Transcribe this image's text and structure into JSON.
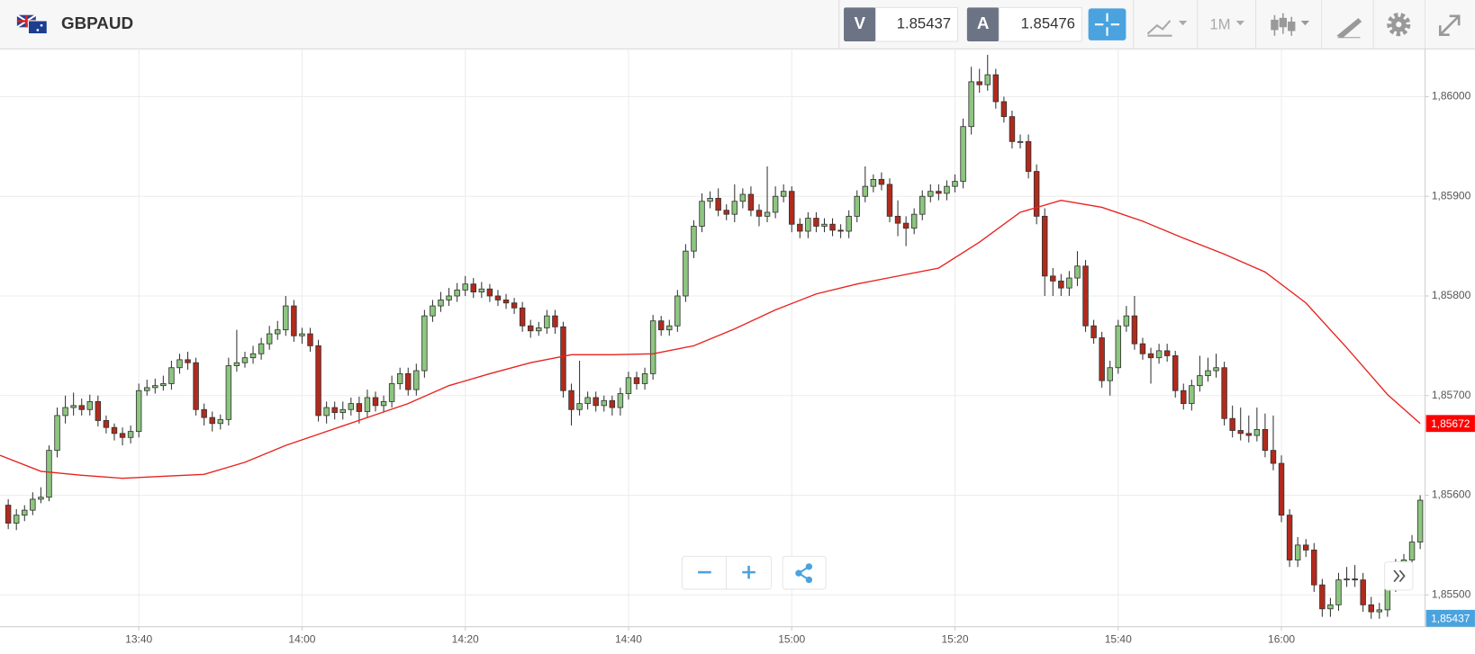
{
  "header": {
    "symbol": "GBPAUD",
    "bid_label": "V",
    "bid": "1.85437",
    "ask_label": "A",
    "ask": "1.85476",
    "timeframe": "1M"
  },
  "chart_data": {
    "type": "candlestick",
    "x": [
      804,
      805,
      806,
      807,
      808,
      809,
      810,
      811,
      812,
      813,
      814,
      815,
      816,
      817,
      818,
      819,
      820,
      821,
      822,
      823,
      824,
      825,
      826,
      827,
      828,
      829,
      830,
      831,
      832,
      833,
      834,
      835,
      836,
      837,
      838,
      839,
      840,
      841,
      842,
      843,
      844,
      845,
      846,
      847,
      848,
      849,
      850,
      851,
      852,
      853,
      854,
      855,
      856,
      857,
      858,
      859,
      860,
      861,
      862,
      863,
      864,
      865,
      866,
      867,
      868,
      869,
      870,
      871,
      872,
      873,
      874,
      875,
      876,
      877,
      878,
      879,
      880,
      881,
      882,
      883,
      884,
      885,
      886,
      887,
      888,
      889,
      890,
      891,
      892,
      893,
      894,
      895,
      896,
      897,
      898,
      899,
      900,
      901,
      902,
      903,
      904,
      905,
      906,
      907,
      908,
      909,
      910,
      911,
      912,
      913,
      914,
      915,
      916,
      917,
      918,
      919,
      920,
      921,
      922,
      923,
      924,
      925,
      926,
      927,
      928,
      929,
      930,
      931,
      932,
      933,
      934,
      935,
      936,
      937,
      938,
      939,
      940,
      941,
      942,
      943,
      944,
      945,
      946,
      947,
      948,
      949,
      950,
      951,
      952,
      953,
      954,
      955,
      956,
      957,
      958,
      959,
      960,
      961,
      962,
      963,
      964,
      965,
      966,
      967,
      968,
      969,
      970,
      971,
      972,
      973,
      974,
      975,
      976,
      977
    ],
    "open": [
      1.8559,
      1.85572,
      1.8558,
      1.85585,
      1.85596,
      1.85598,
      1.85645,
      1.8568,
      1.85688,
      1.8569,
      1.85686,
      1.85694,
      1.85675,
      1.85668,
      1.85662,
      1.85658,
      1.85664,
      1.85705,
      1.85708,
      1.8571,
      1.85712,
      1.85728,
      1.85736,
      1.85733,
      1.85686,
      1.85678,
      1.85672,
      1.85676,
      1.8573,
      1.85733,
      1.85738,
      1.85742,
      1.85752,
      1.85762,
      1.85766,
      1.8579,
      1.8576,
      1.85762,
      1.8575,
      1.8568,
      1.85688,
      1.85683,
      1.85686,
      1.85692,
      1.85684,
      1.85698,
      1.8569,
      1.85694,
      1.85712,
      1.85722,
      1.85706,
      1.85725,
      1.8578,
      1.8579,
      1.85796,
      1.858,
      1.85806,
      1.85812,
      1.85804,
      1.85807,
      1.858,
      1.85796,
      1.85793,
      1.85788,
      1.8577,
      1.85765,
      1.85768,
      1.8578,
      1.85769,
      1.85705,
      1.85686,
      1.85692,
      1.85698,
      1.8569,
      1.85695,
      1.85688,
      1.85702,
      1.85718,
      1.85712,
      1.85722,
      1.85775,
      1.85766,
      1.8577,
      1.858,
      1.85845,
      1.8587,
      1.85895,
      1.85898,
      1.85886,
      1.85882,
      1.85895,
      1.85902,
      1.85886,
      1.8588,
      1.85884,
      1.859,
      1.85905,
      1.85872,
      1.85865,
      1.85878,
      1.8587,
      1.85872,
      1.85866,
      1.85865,
      1.8588,
      1.859,
      1.8591,
      1.85917,
      1.85912,
      1.8588,
      1.85873,
      1.85868,
      1.85882,
      1.859,
      1.85905,
      1.85903,
      1.8591,
      1.85915,
      1.8597,
      1.86015,
      1.86012,
      1.86022,
      1.85995,
      1.8598,
      1.85955,
      1.85955,
      1.85925,
      1.8588,
      1.8582,
      1.85815,
      1.85808,
      1.85818,
      1.8583,
      1.8577,
      1.85758,
      1.85715,
      1.85728,
      1.8577,
      1.8578,
      1.85752,
      1.85742,
      1.85738,
      1.85745,
      1.8574,
      1.85705,
      1.85692,
      1.8571,
      1.8572,
      1.85725,
      1.85728,
      1.85677,
      1.85665,
      1.85662,
      1.8566,
      1.85666,
      1.85645,
      1.85632,
      1.8558,
      1.85535,
      1.8555,
      1.85545,
      1.8551,
      1.85486,
      1.8549,
      1.85515,
      1.85516,
      1.85515,
      1.8549,
      1.85483,
      1.85485,
      1.8551,
      1.8553,
      1.85535,
      1.85553
    ],
    "high": [
      1.85596,
      1.85586,
      1.8559,
      1.85603,
      1.85608,
      1.8565,
      1.85688,
      1.857,
      1.85703,
      1.85697,
      1.85701,
      1.857,
      1.8568,
      1.85672,
      1.85668,
      1.8567,
      1.85712,
      1.85716,
      1.85717,
      1.8572,
      1.85735,
      1.85742,
      1.85744,
      1.85738,
      1.85692,
      1.85684,
      1.85681,
      1.85738,
      1.85766,
      1.85744,
      1.8575,
      1.85758,
      1.8577,
      1.85775,
      1.858,
      1.85796,
      1.85768,
      1.85768,
      1.85756,
      1.85694,
      1.85694,
      1.85694,
      1.85698,
      1.85699,
      1.85706,
      1.85704,
      1.857,
      1.8572,
      1.85728,
      1.85728,
      1.85732,
      1.85786,
      1.85796,
      1.85804,
      1.85808,
      1.85813,
      1.8582,
      1.85818,
      1.85814,
      1.85812,
      1.85806,
      1.85802,
      1.85798,
      1.85794,
      1.85776,
      1.85774,
      1.85786,
      1.85786,
      1.85774,
      1.85712,
      1.85735,
      1.85704,
      1.85704,
      1.857,
      1.857,
      1.85708,
      1.85724,
      1.85724,
      1.85728,
      1.85781,
      1.8578,
      1.85776,
      1.85806,
      1.85852,
      1.85876,
      1.85903,
      1.85905,
      1.85908,
      1.85892,
      1.85912,
      1.85908,
      1.8591,
      1.85892,
      1.8593,
      1.8591,
      1.85912,
      1.8591,
      1.85878,
      1.85884,
      1.85884,
      1.85878,
      1.85878,
      1.85872,
      1.85886,
      1.85906,
      1.8593,
      1.85922,
      1.85924,
      1.85918,
      1.85896,
      1.8588,
      1.85888,
      1.85906,
      1.85912,
      1.85912,
      1.85916,
      1.85922,
      1.85978,
      1.8603,
      1.86028,
      1.86042,
      1.86028,
      1.86,
      1.85986,
      1.85962,
      1.85962,
      1.85932,
      1.85888,
      1.85828,
      1.85822,
      1.85825,
      1.85845,
      1.85836,
      1.85776,
      1.85764,
      1.85735,
      1.85776,
      1.8579,
      1.858,
      1.85758,
      1.85748,
      1.85752,
      1.85752,
      1.85745,
      1.85712,
      1.85716,
      1.8574,
      1.85738,
      1.85742,
      1.85734,
      1.8569,
      1.85688,
      1.8568,
      1.85688,
      1.85682,
      1.8568,
      1.8564,
      1.85586,
      1.85558,
      1.85556,
      1.85552,
      1.85516,
      1.85497,
      1.85522,
      1.85528,
      1.8553,
      1.85522,
      1.85498,
      1.85492,
      1.85516,
      1.85536,
      1.85541,
      1.8556,
      1.856
    ],
    "low": [
      1.85566,
      1.85565,
      1.85574,
      1.8558,
      1.85592,
      1.85594,
      1.85638,
      1.85672,
      1.8568,
      1.8568,
      1.8568,
      1.85669,
      1.85662,
      1.85655,
      1.8565,
      1.85652,
      1.85658,
      1.857,
      1.85702,
      1.85705,
      1.85706,
      1.85722,
      1.85726,
      1.8568,
      1.8567,
      1.85664,
      1.85666,
      1.8567,
      1.85724,
      1.85728,
      1.85732,
      1.85736,
      1.85746,
      1.85756,
      1.8576,
      1.85754,
      1.85752,
      1.85744,
      1.85674,
      1.85672,
      1.85676,
      1.85676,
      1.8568,
      1.85672,
      1.85678,
      1.85684,
      1.85684,
      1.85688,
      1.85706,
      1.857,
      1.857,
      1.85718,
      1.85774,
      1.85784,
      1.8579,
      1.85794,
      1.858,
      1.85798,
      1.85798,
      1.85794,
      1.8579,
      1.85787,
      1.85782,
      1.85764,
      1.85758,
      1.8576,
      1.85762,
      1.85762,
      1.85698,
      1.8567,
      1.8568,
      1.85686,
      1.85684,
      1.85684,
      1.8568,
      1.8568,
      1.85696,
      1.85706,
      1.85706,
      1.85716,
      1.8576,
      1.8576,
      1.85764,
      1.85794,
      1.85838,
      1.85864,
      1.85888,
      1.8588,
      1.85876,
      1.85874,
      1.85888,
      1.8588,
      1.8587,
      1.85874,
      1.85878,
      1.85894,
      1.85864,
      1.85858,
      1.85858,
      1.85864,
      1.85864,
      1.8586,
      1.85858,
      1.85858,
      1.85874,
      1.85894,
      1.85904,
      1.85906,
      1.85874,
      1.8586,
      1.8585,
      1.85862,
      1.85876,
      1.85894,
      1.85896,
      1.85896,
      1.85904,
      1.85908,
      1.85962,
      1.86004,
      1.86006,
      1.85988,
      1.85974,
      1.85948,
      1.85948,
      1.85918,
      1.85872,
      1.858,
      1.858,
      1.858,
      1.858,
      1.8581,
      1.85764,
      1.85752,
      1.85708,
      1.857,
      1.85722,
      1.85764,
      1.85746,
      1.85736,
      1.85712,
      1.85732,
      1.85734,
      1.85698,
      1.85686,
      1.85685,
      1.85704,
      1.85714,
      1.85718,
      1.8567,
      1.85658,
      1.85655,
      1.85653,
      1.85654,
      1.85638,
      1.85625,
      1.85573,
      1.85528,
      1.85528,
      1.85538,
      1.85503,
      1.85478,
      1.85478,
      1.85484,
      1.85508,
      1.85508,
      1.85483,
      1.85476,
      1.85476,
      1.85478,
      1.85503,
      1.85524,
      1.85528,
      1.85546
    ],
    "close": [
      1.85572,
      1.8558,
      1.85585,
      1.85596,
      1.85598,
      1.85645,
      1.8568,
      1.85688,
      1.8569,
      1.85686,
      1.85694,
      1.85675,
      1.85668,
      1.85662,
      1.85658,
      1.85664,
      1.85705,
      1.85708,
      1.8571,
      1.85712,
      1.85728,
      1.85736,
      1.85733,
      1.85686,
      1.85678,
      1.85672,
      1.85676,
      1.8573,
      1.85733,
      1.85738,
      1.85742,
      1.85752,
      1.85762,
      1.85766,
      1.8579,
      1.8576,
      1.85762,
      1.8575,
      1.8568,
      1.85688,
      1.85683,
      1.85686,
      1.85692,
      1.85684,
      1.85698,
      1.8569,
      1.85694,
      1.85712,
      1.85722,
      1.85706,
      1.85725,
      1.8578,
      1.8579,
      1.85796,
      1.858,
      1.85806,
      1.85812,
      1.85804,
      1.85807,
      1.858,
      1.85796,
      1.85793,
      1.85788,
      1.8577,
      1.85765,
      1.85768,
      1.8578,
      1.85769,
      1.85705,
      1.85686,
      1.85692,
      1.85698,
      1.8569,
      1.85695,
      1.85688,
      1.85702,
      1.85718,
      1.85712,
      1.85722,
      1.85775,
      1.85766,
      1.8577,
      1.858,
      1.85845,
      1.8587,
      1.85895,
      1.85898,
      1.85886,
      1.85882,
      1.85895,
      1.85902,
      1.85886,
      1.8588,
      1.85884,
      1.859,
      1.85905,
      1.85872,
      1.85865,
      1.85878,
      1.8587,
      1.85872,
      1.85866,
      1.85865,
      1.8588,
      1.859,
      1.8591,
      1.85917,
      1.85912,
      1.8588,
      1.85873,
      1.85868,
      1.85882,
      1.859,
      1.85905,
      1.85903,
      1.8591,
      1.85915,
      1.8597,
      1.86015,
      1.86012,
      1.86022,
      1.85995,
      1.8598,
      1.85955,
      1.85955,
      1.85925,
      1.8588,
      1.8582,
      1.85815,
      1.85808,
      1.85818,
      1.8583,
      1.8577,
      1.85758,
      1.85715,
      1.85728,
      1.8577,
      1.8578,
      1.85752,
      1.85742,
      1.85738,
      1.85745,
      1.8574,
      1.85705,
      1.85692,
      1.8571,
      1.8572,
      1.85725,
      1.85728,
      1.85677,
      1.85665,
      1.85662,
      1.8566,
      1.85666,
      1.85645,
      1.85632,
      1.8558,
      1.85535,
      1.8555,
      1.85545,
      1.8551,
      1.85486,
      1.8549,
      1.85515,
      1.85516,
      1.85515,
      1.8549,
      1.85483,
      1.85485,
      1.8551,
      1.8553,
      1.85535,
      1.85553,
      1.85595
    ],
    "up_color": "#8dc67f",
    "down_color": "#b22a1c",
    "xlim": [
      803,
      977.6
    ],
    "ylim": [
      1.85468,
      1.86048
    ],
    "xticks": [
      {
        "value": 820,
        "label": "13:40"
      },
      {
        "value": 840,
        "label": "14:00"
      },
      {
        "value": 860,
        "label": "14:20"
      },
      {
        "value": 880,
        "label": "14:40"
      },
      {
        "value": 900,
        "label": "15:00"
      },
      {
        "value": 920,
        "label": "15:20"
      },
      {
        "value": 940,
        "label": "15:40"
      },
      {
        "value": 960,
        "label": "16:00"
      }
    ],
    "yticks": [
      {
        "value": 1.855,
        "label": "1,85500"
      },
      {
        "value": 1.856,
        "label": "1,85600"
      },
      {
        "value": 1.857,
        "label": "1,85700"
      },
      {
        "value": 1.858,
        "label": "1,85800"
      },
      {
        "value": 1.859,
        "label": "1,85900"
      },
      {
        "value": 1.86,
        "label": "1,86000"
      }
    ],
    "grid": true,
    "moving_average": {
      "color": "#e8231f",
      "x": [
        803,
        808,
        813,
        818,
        823,
        828,
        833,
        838,
        843,
        848,
        853,
        858,
        863,
        868,
        873,
        878,
        883,
        888,
        893,
        898,
        903,
        908,
        913,
        918,
        923,
        928,
        933,
        938,
        943,
        948,
        953,
        958,
        963,
        968,
        973,
        977
      ],
      "values": [
        1.8564,
        1.85624,
        1.8562,
        1.85617,
        1.85619,
        1.85621,
        1.85633,
        1.8565,
        1.85664,
        1.85678,
        1.85692,
        1.8571,
        1.85722,
        1.85733,
        1.85741,
        1.85741,
        1.85742,
        1.8575,
        1.85767,
        1.85786,
        1.85802,
        1.85812,
        1.8582,
        1.85828,
        1.85854,
        1.85884,
        1.85896,
        1.85889,
        1.85875,
        1.85858,
        1.85842,
        1.85824,
        1.85793,
        1.85748,
        1.85701,
        1.85672
      ]
    },
    "ma_marker": {
      "value": 1.85672,
      "label": "1,85672",
      "color": "#ff0000"
    },
    "price_marker": {
      "value": 1.85437,
      "label": "1,85437",
      "color": "#4aa3df"
    }
  }
}
